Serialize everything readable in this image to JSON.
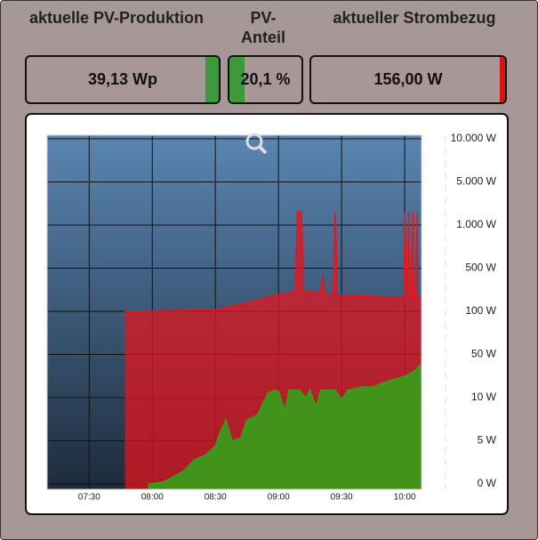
{
  "tiles": [
    {
      "label": "aktuelle PV-Produktion",
      "value": "39,13 Wp"
    },
    {
      "label": "PV-\nAnteil",
      "value": "20,1 %"
    },
    {
      "label": "aktueller Strombezug",
      "value": "156,00 W"
    }
  ],
  "chart_data": {
    "type": "area",
    "xlim": [
      "07:10",
      "10:08"
    ],
    "xticks": [
      "07:30",
      "08:00",
      "08:30",
      "09:00",
      "09:30",
      "10:00"
    ],
    "ylim": [
      0,
      10000
    ],
    "yticks": [
      {
        "value": 0,
        "label": "0 W"
      },
      {
        "value": 5,
        "label": "5 W"
      },
      {
        "value": 10,
        "label": "10 W"
      },
      {
        "value": 50,
        "label": "50 W"
      },
      {
        "value": 100,
        "label": "100 W"
      },
      {
        "value": 500,
        "label": "500 W"
      },
      {
        "value": 1000,
        "label": "1.000 W"
      },
      {
        "value": 5000,
        "label": "5.000 W"
      },
      {
        "value": 10000,
        "label": "10.000 W"
      }
    ],
    "grid": true,
    "series": [
      {
        "color": "#e8141a",
        "x": [
          "07:47",
          "08:30",
          "08:45",
          "09:00",
          "09:08",
          "09:09",
          "09:10",
          "09:11",
          "09:12",
          "09:20",
          "09:21",
          "09:22",
          "09:26",
          "09:27",
          "09:28",
          "09:30",
          "09:45",
          "10:00",
          "10:00",
          "10:01",
          "10:02",
          "10:02",
          "10:03",
          "10:04",
          "10:04",
          "10:05",
          "10:06",
          "10:06",
          "10:07",
          "10:08"
        ],
        "values": [
          100,
          115,
          180,
          260,
          280,
          2200,
          2200,
          2200,
          280,
          270,
          430,
          260,
          250,
          2200,
          250,
          250,
          240,
          230,
          2200,
          230,
          2200,
          230,
          230,
          2200,
          230,
          230,
          2200,
          230,
          230,
          220
        ]
      },
      {
        "color": "#3c9a1a",
        "x": [
          "07:58",
          "08:05",
          "08:15",
          "08:20",
          "08:25",
          "08:30",
          "08:33",
          "08:35",
          "08:38",
          "08:42",
          "08:45",
          "08:50",
          "08:55",
          "08:58",
          "09:00",
          "09:03",
          "09:05",
          "09:10",
          "09:13",
          "09:15",
          "09:18",
          "09:20",
          "09:27",
          "09:30",
          "09:33",
          "09:40",
          "09:45",
          "09:50",
          "09:55",
          "10:00",
          "10:05",
          "10:07",
          "10:08"
        ],
        "values": [
          0,
          0.2,
          1.5,
          2.8,
          3.3,
          4.4,
          6.4,
          7.4,
          5,
          5.3,
          7.4,
          8,
          14,
          17,
          16,
          8.5,
          17,
          17,
          10,
          17,
          8.9,
          17,
          17,
          9.8,
          17,
          20,
          20,
          24,
          27,
          30,
          35,
          40,
          38
        ]
      }
    ]
  }
}
